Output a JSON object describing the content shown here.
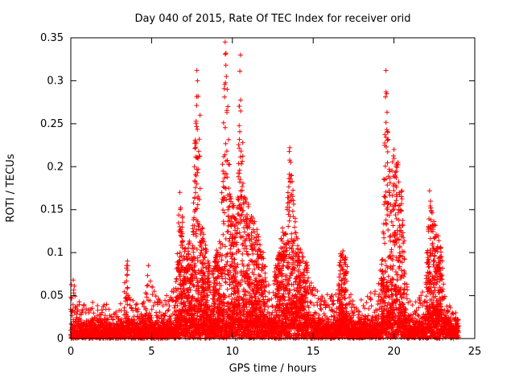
{
  "chart_data": {
    "type": "scatter",
    "title": "Day 040 of 2015, Rate Of TEC Index for receiver orid",
    "xlabel": "GPS time / hours",
    "ylabel": "ROTI / TECUs",
    "xlim": [
      0,
      25
    ],
    "ylim": [
      0,
      0.35
    ],
    "xticks": [
      0,
      5,
      10,
      15,
      20,
      25
    ],
    "xtick_labels": [
      "0",
      "5",
      "10",
      "15",
      "20",
      "25"
    ],
    "yticks": [
      0,
      0.05,
      0.1,
      0.15,
      0.2,
      0.25,
      0.3,
      0.35
    ],
    "ytick_labels": [
      "0",
      "0.05",
      "0.1",
      "0.15",
      "0.2",
      "0.25",
      "0.3",
      "0.35"
    ],
    "grid": false,
    "legend": "none",
    "marker": {
      "symbol": "plus",
      "color": "#ff0000",
      "size": 7
    },
    "series_name": "ROTI",
    "data_extent_hours": [
      0,
      24
    ],
    "baseline_band": {
      "min": 0,
      "typical_max": 0.03
    },
    "envelope": [
      [
        0,
        0.068
      ],
      [
        0.15,
        0.068
      ],
      [
        0.3,
        0.05
      ],
      [
        0.6,
        0.045
      ],
      [
        1,
        0.038
      ],
      [
        1.4,
        0.045
      ],
      [
        1.8,
        0.035
      ],
      [
        2.1,
        0.042
      ],
      [
        2.5,
        0.035
      ],
      [
        2.9,
        0.032
      ],
      [
        3.2,
        0.05
      ],
      [
        3.5,
        0.09
      ],
      [
        3.7,
        0.06
      ],
      [
        4,
        0.04
      ],
      [
        4.3,
        0.042
      ],
      [
        4.6,
        0.055
      ],
      [
        4.8,
        0.085
      ],
      [
        5,
        0.065
      ],
      [
        5.3,
        0.05
      ],
      [
        5.6,
        0.045
      ],
      [
        5.9,
        0.058
      ],
      [
        6.2,
        0.05
      ],
      [
        6.5,
        0.08
      ],
      [
        6.75,
        0.17
      ],
      [
        6.9,
        0.15
      ],
      [
        7.1,
        0.1
      ],
      [
        7.3,
        0.12
      ],
      [
        7.5,
        0.1
      ],
      [
        7.8,
        0.312
      ],
      [
        7.95,
        0.232
      ],
      [
        8.1,
        0.14
      ],
      [
        8.4,
        0.1
      ],
      [
        8.7,
        0.08
      ],
      [
        9,
        0.1
      ],
      [
        9.3,
        0.12
      ],
      [
        9.55,
        0.345
      ],
      [
        9.7,
        0.27
      ],
      [
        9.9,
        0.17
      ],
      [
        10.1,
        0.16
      ],
      [
        10.3,
        0.15
      ],
      [
        10.5,
        0.33
      ],
      [
        10.7,
        0.17
      ],
      [
        10.9,
        0.16
      ],
      [
        11.1,
        0.16
      ],
      [
        11.3,
        0.15
      ],
      [
        11.6,
        0.12
      ],
      [
        11.9,
        0.1
      ],
      [
        12.2,
        0.065
      ],
      [
        12.5,
        0.07
      ],
      [
        12.8,
        0.095
      ],
      [
        13.1,
        0.13
      ],
      [
        13.3,
        0.12
      ],
      [
        13.55,
        0.222
      ],
      [
        13.7,
        0.19
      ],
      [
        14,
        0.12
      ],
      [
        14.3,
        0.1
      ],
      [
        14.6,
        0.09
      ],
      [
        14.9,
        0.07
      ],
      [
        15.2,
        0.06
      ],
      [
        15.5,
        0.055
      ],
      [
        15.8,
        0.05
      ],
      [
        16.1,
        0.055
      ],
      [
        16.4,
        0.06
      ],
      [
        16.7,
        0.1
      ],
      [
        16.9,
        0.115
      ],
      [
        17.2,
        0.07
      ],
      [
        17.5,
        0.045
      ],
      [
        17.8,
        0.042
      ],
      [
        18.1,
        0.05
      ],
      [
        18.4,
        0.055
      ],
      [
        18.7,
        0.055
      ],
      [
        19,
        0.06
      ],
      [
        19.3,
        0.1
      ],
      [
        19.5,
        0.312
      ],
      [
        19.65,
        0.24
      ],
      [
        19.8,
        0.2
      ],
      [
        20,
        0.22
      ],
      [
        20.25,
        0.205
      ],
      [
        20.5,
        0.17
      ],
      [
        20.7,
        0.07
      ],
      [
        21,
        0.05
      ],
      [
        21.3,
        0.045
      ],
      [
        21.6,
        0.05
      ],
      [
        21.9,
        0.06
      ],
      [
        22.1,
        0.12
      ],
      [
        22.25,
        0.172
      ],
      [
        22.45,
        0.15
      ],
      [
        22.6,
        0.13
      ],
      [
        22.9,
        0.105
      ],
      [
        23.2,
        0.06
      ],
      [
        23.5,
        0.045
      ],
      [
        23.8,
        0.032
      ],
      [
        24,
        0.03
      ]
    ],
    "notable_peaks": [
      [
        0.15,
        0.068
      ],
      [
        3.5,
        0.09
      ],
      [
        4.8,
        0.085
      ],
      [
        6.75,
        0.17
      ],
      [
        6.8,
        0.152
      ],
      [
        7.8,
        0.312
      ],
      [
        7.84,
        0.3
      ],
      [
        7.88,
        0.282
      ],
      [
        7.95,
        0.232
      ],
      [
        8.0,
        0.26
      ],
      [
        9.55,
        0.345
      ],
      [
        9.6,
        0.332
      ],
      [
        9.62,
        0.305
      ],
      [
        9.68,
        0.29
      ],
      [
        9.72,
        0.27
      ],
      [
        10.5,
        0.33
      ],
      [
        13.55,
        0.222
      ],
      [
        13.6,
        0.205
      ],
      [
        13.66,
        0.19
      ],
      [
        19.5,
        0.312
      ],
      [
        19.55,
        0.285
      ],
      [
        19.62,
        0.24
      ],
      [
        20.0,
        0.22
      ],
      [
        20.25,
        0.205
      ],
      [
        20.5,
        0.172
      ],
      [
        22.2,
        0.172
      ],
      [
        22.28,
        0.152
      ],
      [
        22.9,
        0.105
      ]
    ]
  }
}
